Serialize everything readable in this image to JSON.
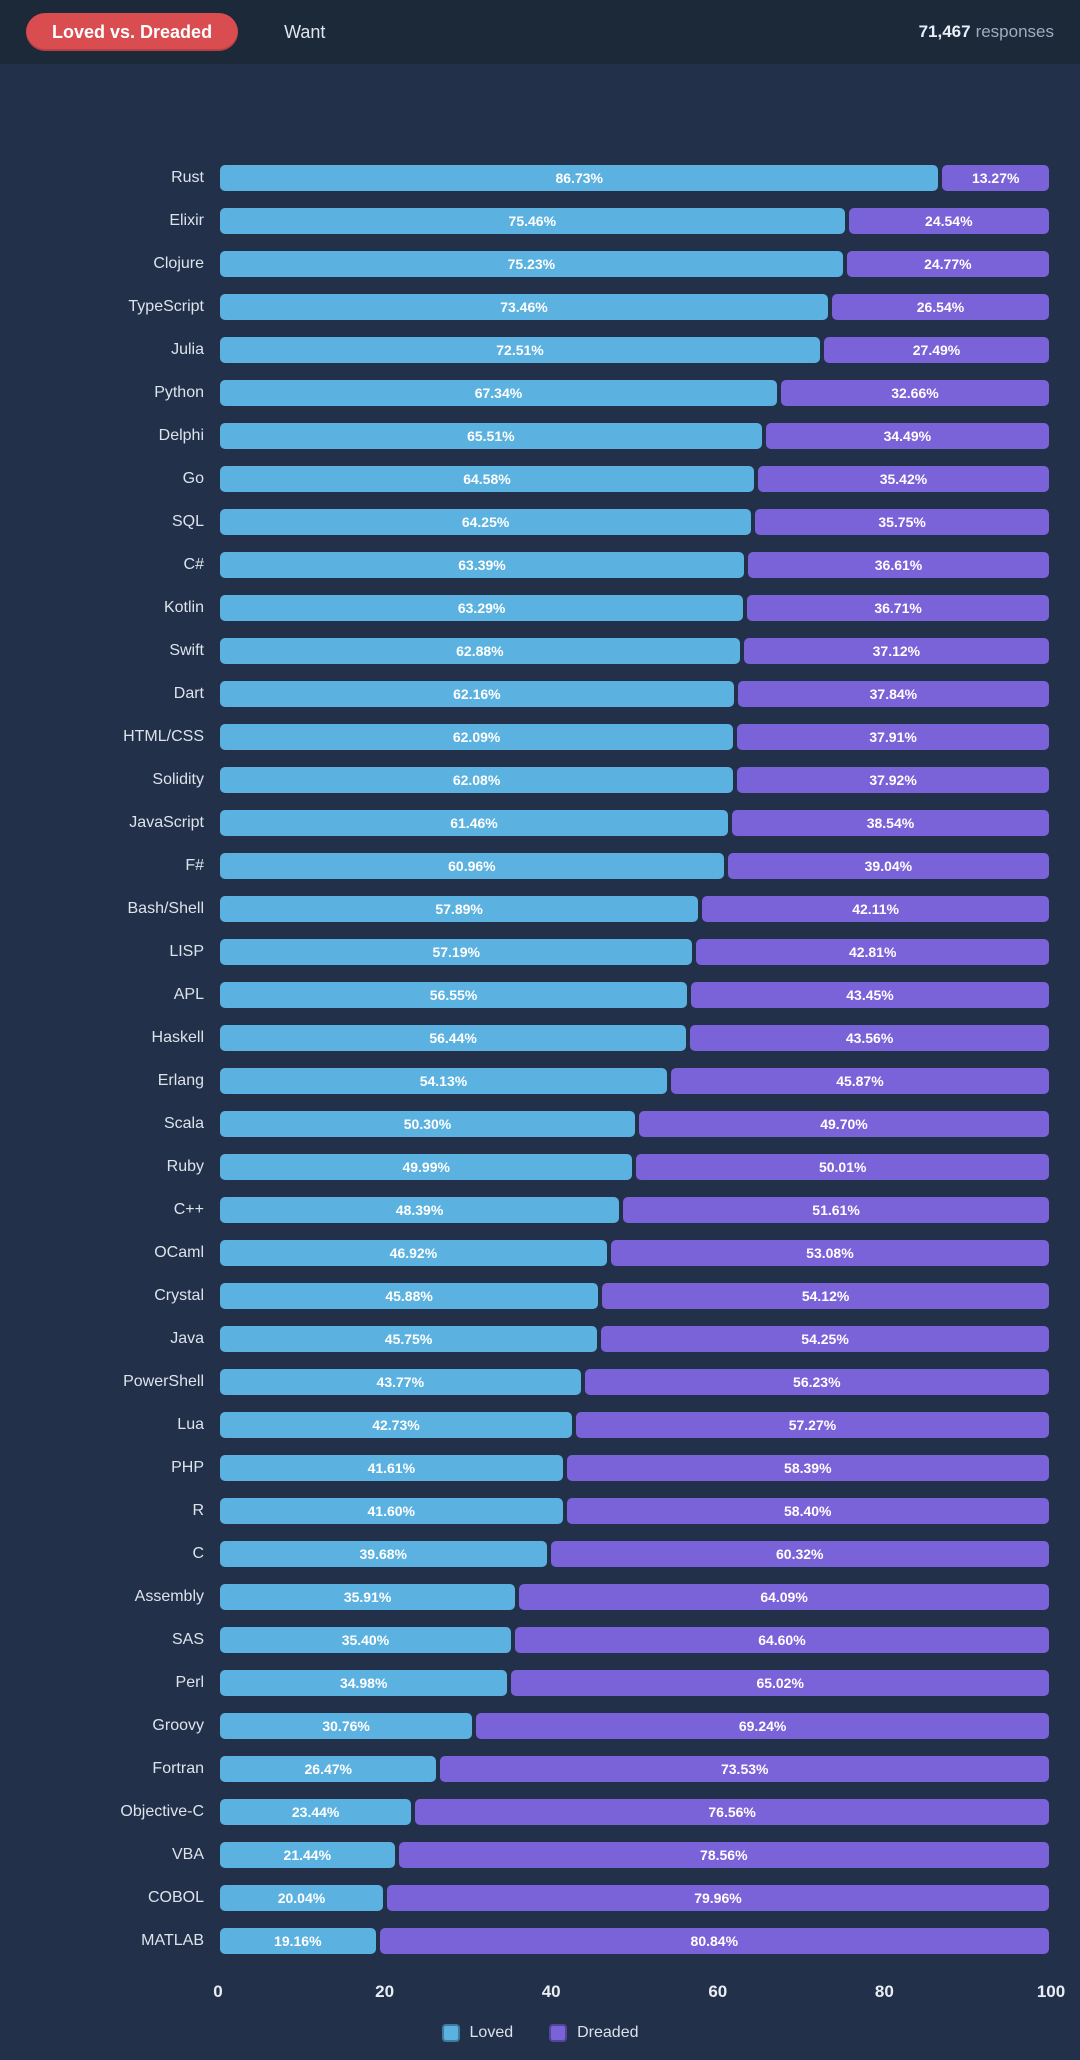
{
  "header": {
    "active_tab": "Loved vs. Dreaded",
    "inactive_tab": "Want",
    "responses_count": "71,467",
    "responses_label": "responses"
  },
  "colors": {
    "background": "#223049",
    "header_background": "#1c2938",
    "active_tab": "#d94c50",
    "loved": "#5bb2e0",
    "dreaded": "#7a62d9"
  },
  "chart_data": {
    "type": "bar",
    "orientation": "horizontal",
    "stacked": true,
    "title": "Loved vs. Dreaded",
    "xlabel": "",
    "ylabel": "",
    "xlim": [
      0,
      100
    ],
    "x_ticks": [
      0,
      20,
      40,
      60,
      80,
      100
    ],
    "grid": false,
    "legend_position": "bottom",
    "value_format": "percent-2dp",
    "categories": [
      "Rust",
      "Elixir",
      "Clojure",
      "TypeScript",
      "Julia",
      "Python",
      "Delphi",
      "Go",
      "SQL",
      "C#",
      "Kotlin",
      "Swift",
      "Dart",
      "HTML/CSS",
      "Solidity",
      "JavaScript",
      "F#",
      "Bash/Shell",
      "LISP",
      "APL",
      "Haskell",
      "Erlang",
      "Scala",
      "Ruby",
      "C++",
      "OCaml",
      "Crystal",
      "Java",
      "PowerShell",
      "Lua",
      "PHP",
      "R",
      "C",
      "Assembly",
      "SAS",
      "Perl",
      "Groovy",
      "Fortran",
      "Objective-C",
      "VBA",
      "COBOL",
      "MATLAB"
    ],
    "series": [
      {
        "name": "Loved",
        "color": "#5bb2e0",
        "values": [
          86.73,
          75.46,
          75.23,
          73.46,
          72.51,
          67.34,
          65.51,
          64.58,
          64.25,
          63.39,
          63.29,
          62.88,
          62.16,
          62.09,
          62.08,
          61.46,
          60.96,
          57.89,
          57.19,
          56.55,
          56.44,
          54.13,
          50.3,
          49.99,
          48.39,
          46.92,
          45.88,
          45.75,
          43.77,
          42.73,
          41.61,
          41.6,
          39.68,
          35.91,
          35.4,
          34.98,
          30.76,
          26.47,
          23.44,
          21.44,
          20.04,
          19.16
        ]
      },
      {
        "name": "Dreaded",
        "color": "#7a62d9",
        "values": [
          13.27,
          24.54,
          24.77,
          26.54,
          27.49,
          32.66,
          34.49,
          35.42,
          35.75,
          36.61,
          36.71,
          37.12,
          37.84,
          37.91,
          37.92,
          38.54,
          39.04,
          42.11,
          42.81,
          43.45,
          43.56,
          45.87,
          49.7,
          50.01,
          51.61,
          53.08,
          54.12,
          54.25,
          56.23,
          57.27,
          58.39,
          58.4,
          60.32,
          64.09,
          64.6,
          65.02,
          69.24,
          73.53,
          76.56,
          78.56,
          79.96,
          80.84
        ]
      }
    ]
  }
}
